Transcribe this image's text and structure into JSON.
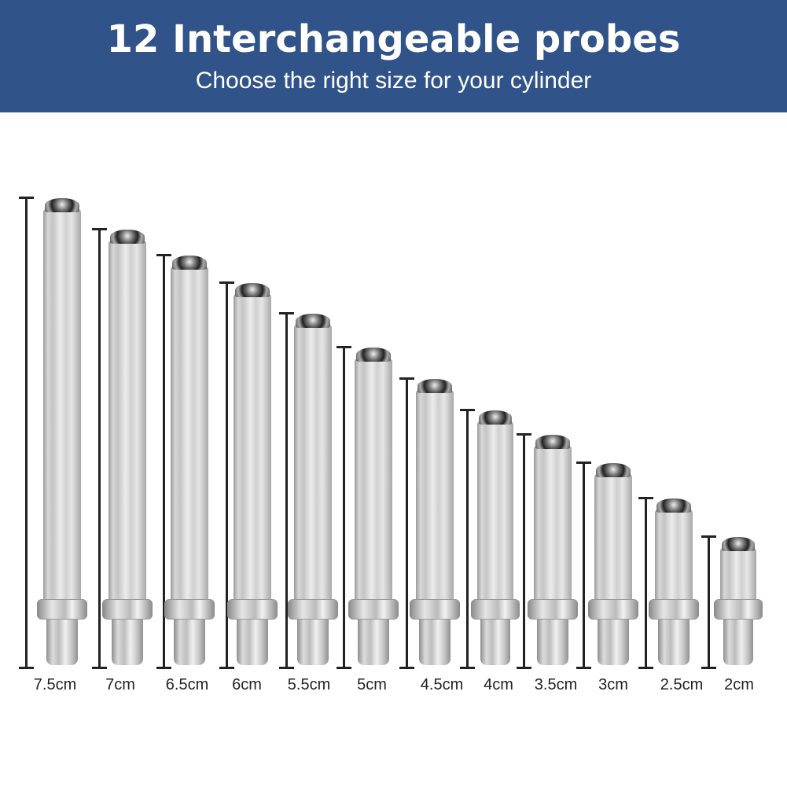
{
  "header": {
    "title": "12 Interchangeable probes",
    "subtitle": "Choose the right size for your cylinder",
    "background_color": "#30538a"
  },
  "probes": [
    {
      "label": "7.5cm",
      "length_cm": 7.5
    },
    {
      "label": "7cm",
      "length_cm": 7
    },
    {
      "label": "6.5cm",
      "length_cm": 6.5
    },
    {
      "label": "6cm",
      "length_cm": 6
    },
    {
      "label": "5.5cm",
      "length_cm": 5.5
    },
    {
      "label": "5cm",
      "length_cm": 5
    },
    {
      "label": "4.5cm",
      "length_cm": 4.5
    },
    {
      "label": "4cm",
      "length_cm": 4
    },
    {
      "label": "3.5cm",
      "length_cm": 3.5
    },
    {
      "label": "3cm",
      "length_cm": 3
    },
    {
      "label": "2.5cm",
      "length_cm": 2.5
    },
    {
      "label": "2cm",
      "length_cm": 2
    }
  ]
}
